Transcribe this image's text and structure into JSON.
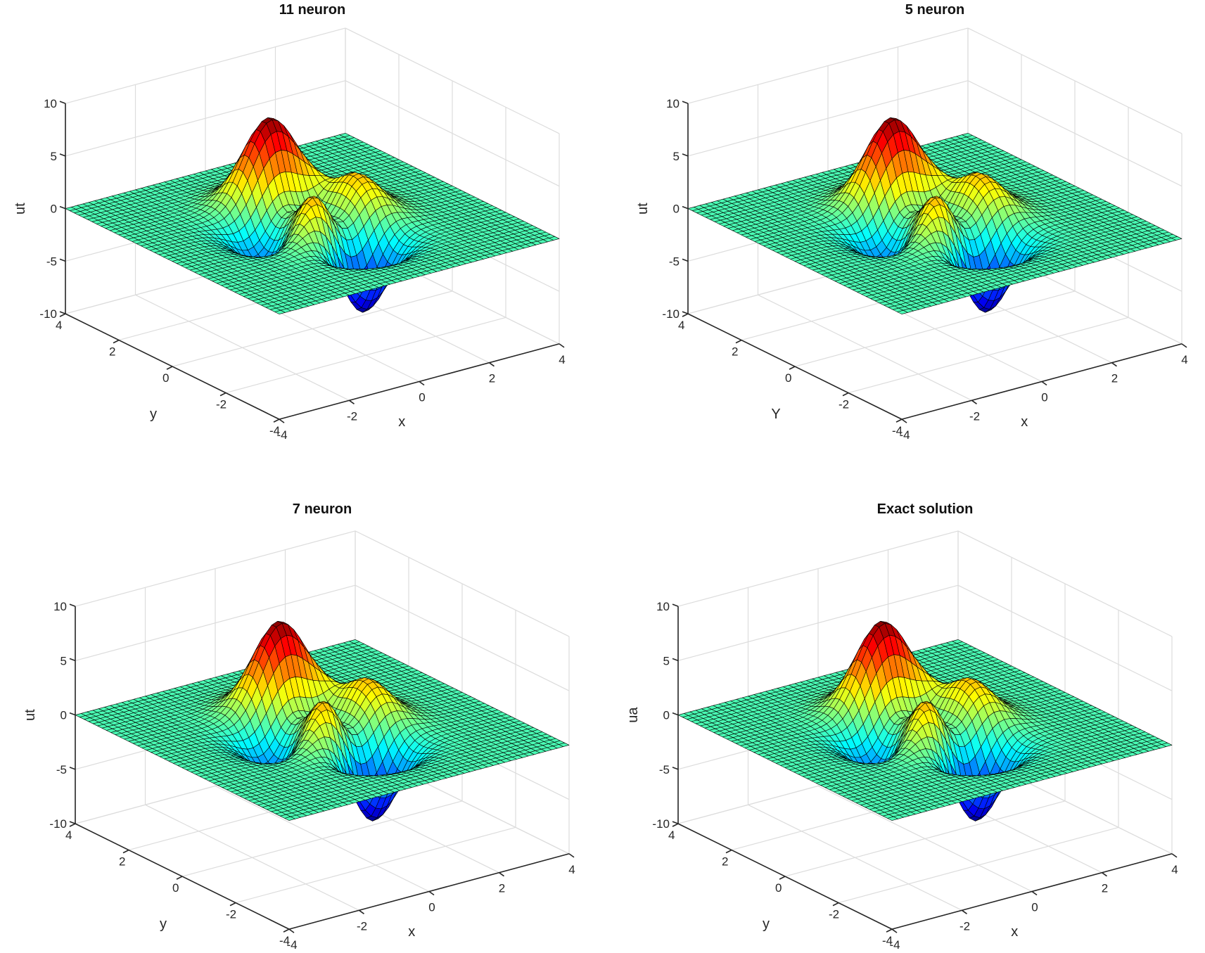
{
  "chart_data": [
    {
      "type": "surface",
      "title": "11 neuron",
      "xlabel": "x",
      "ylabel": "y",
      "zlabel": "ut",
      "function": "peaks",
      "xlim": [
        -4,
        4
      ],
      "ylim": [
        -4,
        4
      ],
      "zlim": [
        -10,
        10
      ],
      "xticks": [
        -4,
        -2,
        0,
        2,
        4
      ],
      "yticks": [
        -4,
        -2,
        0,
        2,
        4
      ],
      "zticks": [
        -10,
        -5,
        0,
        5,
        10
      ],
      "grid_points": 49,
      "z_max": 8.1,
      "z_min": -6.55,
      "view": {
        "azimuth": -37.5,
        "elevation": 30
      },
      "colormap": "jet",
      "grid": true
    },
    {
      "type": "surface",
      "title": "5 neuron",
      "xlabel": "x",
      "ylabel": "Y",
      "zlabel": "ut",
      "function": "peaks",
      "xlim": [
        -4,
        4
      ],
      "ylim": [
        -4,
        4
      ],
      "zlim": [
        -10,
        10
      ],
      "xticks": [
        -4,
        -2,
        0,
        2,
        4
      ],
      "yticks": [
        -4,
        -2,
        0,
        2,
        4
      ],
      "zticks": [
        -10,
        -5,
        0,
        5,
        10
      ],
      "grid_points": 49,
      "z_max": 8.1,
      "z_min": -6.55,
      "view": {
        "azimuth": -37.5,
        "elevation": 30
      },
      "colormap": "jet",
      "grid": true
    },
    {
      "type": "surface",
      "title": "7 neuron",
      "xlabel": "x",
      "ylabel": "y",
      "zlabel": "ut",
      "function": "peaks",
      "xlim": [
        -4,
        4
      ],
      "ylim": [
        -4,
        4
      ],
      "zlim": [
        -10,
        10
      ],
      "xticks": [
        -4,
        -2,
        0,
        2,
        4
      ],
      "yticks": [
        -4,
        -2,
        0,
        2,
        4
      ],
      "zticks": [
        -10,
        -5,
        0,
        5,
        10
      ],
      "grid_points": 49,
      "z_max": 8.1,
      "z_min": -6.55,
      "view": {
        "azimuth": -37.5,
        "elevation": 30
      },
      "colormap": "jet",
      "grid": true
    },
    {
      "type": "surface",
      "title": "Exact solution",
      "xlabel": "x",
      "ylabel": "y",
      "zlabel": "ua",
      "function": "peaks",
      "xlim": [
        -4,
        4
      ],
      "ylim": [
        -4,
        4
      ],
      "zlim": [
        -10,
        10
      ],
      "xticks": [
        -4,
        -2,
        0,
        2,
        4
      ],
      "yticks": [
        -4,
        -2,
        0,
        2,
        4
      ],
      "zticks": [
        -10,
        -5,
        0,
        5,
        10
      ],
      "grid_points": 49,
      "z_max": 8.1,
      "z_min": -6.55,
      "view": {
        "azimuth": -37.5,
        "elevation": 30
      },
      "colormap": "jet",
      "grid": true
    }
  ],
  "colors": {
    "background": "#ffffff",
    "axis": "#262626",
    "gridline": "#dcdcdc",
    "mesh_edge": "#000000"
  }
}
